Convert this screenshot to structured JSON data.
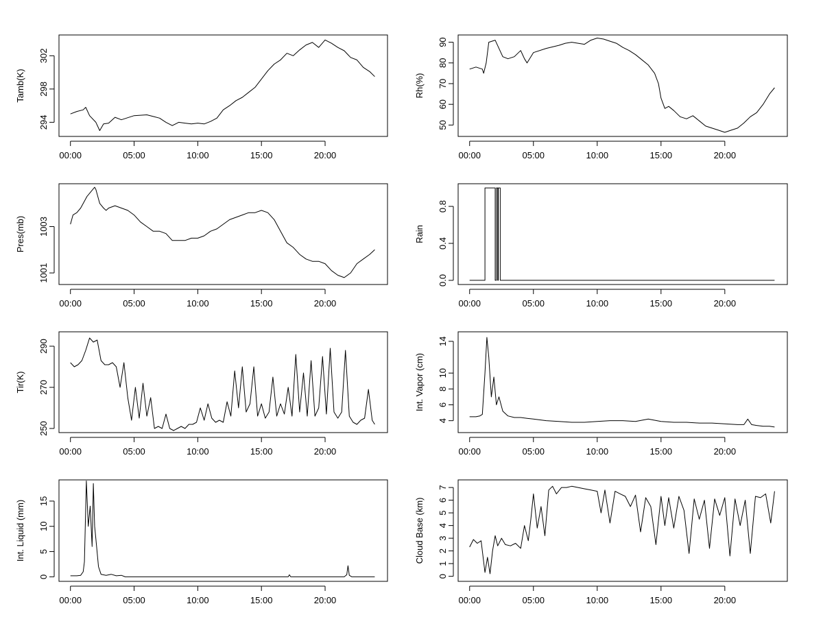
{
  "chart_data": [
    {
      "type": "line",
      "ylabel": "Tamb(K)",
      "x_ticks": [
        "00:00",
        "05:00",
        "10:00",
        "15:00",
        "20:00"
      ],
      "y_ticks": [
        294,
        298,
        302
      ],
      "ylim": [
        292.3,
        304.5
      ],
      "xlim_hours": [
        -0.9,
        24.9
      ],
      "grid": false,
      "x": [
        0,
        0.5,
        1.0,
        1.2,
        1.5,
        2.0,
        2.3,
        2.6,
        3.0,
        3.5,
        4.0,
        5.0,
        6.0,
        6.5,
        7.0,
        7.5,
        8.0,
        8.5,
        9.0,
        9.5,
        10.0,
        10.5,
        11.0,
        11.5,
        12.0,
        12.5,
        13.0,
        13.5,
        14.0,
        14.5,
        15.0,
        15.5,
        16.0,
        16.5,
        17.0,
        17.5,
        18.0,
        18.5,
        19.0,
        19.5,
        20.0,
        20.5,
        21.0,
        21.5,
        22.0,
        22.5,
        23.0,
        23.5,
        23.9
      ],
      "y": [
        295.0,
        295.3,
        295.5,
        295.8,
        294.8,
        294.0,
        293.0,
        293.8,
        293.9,
        294.6,
        294.3,
        294.8,
        294.9,
        294.7,
        294.5,
        294.0,
        293.6,
        294.0,
        293.9,
        293.8,
        293.9,
        293.8,
        294.1,
        294.5,
        295.5,
        296.0,
        296.6,
        297.0,
        297.6,
        298.2,
        299.2,
        300.2,
        301.0,
        301.5,
        302.3,
        302.0,
        302.7,
        303.3,
        303.6,
        303.0,
        303.9,
        303.5,
        303.0,
        302.6,
        301.8,
        301.5,
        300.6,
        300.1,
        299.5
      ]
    },
    {
      "type": "line",
      "ylabel": "Rh(%)",
      "x_ticks": [
        "00:00",
        "05:00",
        "10:00",
        "15:00",
        "20:00"
      ],
      "y_ticks": [
        50,
        60,
        70,
        80,
        90
      ],
      "ylim": [
        44.5,
        93.5
      ],
      "xlim_hours": [
        -0.9,
        24.9
      ],
      "grid": false,
      "x": [
        0,
        0.5,
        1.0,
        1.1,
        1.3,
        1.5,
        2.0,
        2.3,
        2.6,
        3.0,
        3.5,
        4.0,
        4.3,
        4.5,
        5.0,
        6.0,
        7.0,
        7.5,
        8.0,
        8.5,
        9.0,
        9.5,
        10.0,
        10.5,
        11.0,
        11.5,
        12.0,
        12.5,
        13.0,
        13.5,
        14.0,
        14.5,
        14.8,
        15.0,
        15.3,
        15.6,
        16.0,
        16.5,
        17.0,
        17.5,
        18.0,
        18.5,
        19.0,
        19.5,
        20.0,
        20.5,
        21.0,
        21.5,
        22.0,
        22.5,
        23.0,
        23.5,
        23.9
      ],
      "y": [
        77,
        78,
        77,
        75,
        80,
        90,
        91,
        87,
        83,
        82,
        83,
        86,
        82,
        80,
        85,
        87,
        88.5,
        89.5,
        90,
        89.5,
        89,
        91,
        92,
        91.5,
        90.5,
        89.5,
        87.5,
        86,
        84,
        81.5,
        79,
        75,
        70,
        63,
        58,
        59,
        57,
        54,
        53,
        54.5,
        52,
        49.5,
        48.5,
        47.5,
        46.5,
        47.5,
        48.5,
        51,
        54,
        56,
        60,
        65,
        68
      ]
    },
    {
      "type": "line",
      "ylabel": "Pres(mb)",
      "x_ticks": [
        "00:00",
        "05:00",
        "10:00",
        "15:00",
        "20:00"
      ],
      "y_ticks": [
        1001,
        1003
      ],
      "ylim": [
        1000.5,
        1004.85
      ],
      "xlim_hours": [
        -0.9,
        24.9
      ],
      "grid": false,
      "x": [
        0,
        0.2,
        0.5,
        0.8,
        1.0,
        1.3,
        1.6,
        1.9,
        2.0,
        2.3,
        2.6,
        2.8,
        3.0,
        3.5,
        4.0,
        4.5,
        5.0,
        5.5,
        6.0,
        6.5,
        7.0,
        7.5,
        8.0,
        8.5,
        9.0,
        9.5,
        10.0,
        10.5,
        11.0,
        11.5,
        12.0,
        12.5,
        13.0,
        13.5,
        14.0,
        14.5,
        15.0,
        15.5,
        16.0,
        16.5,
        17.0,
        17.5,
        18.0,
        18.5,
        19.0,
        19.5,
        20.0,
        20.5,
        21.0,
        21.5,
        22.0,
        22.5,
        23.0,
        23.5,
        23.9
      ],
      "y": [
        1003.1,
        1003.5,
        1003.6,
        1003.8,
        1004.0,
        1004.3,
        1004.5,
        1004.7,
        1004.6,
        1004.0,
        1003.8,
        1003.7,
        1003.8,
        1003.9,
        1003.8,
        1003.7,
        1003.5,
        1003.2,
        1003.0,
        1002.8,
        1002.8,
        1002.7,
        1002.4,
        1002.4,
        1002.4,
        1002.5,
        1002.5,
        1002.6,
        1002.8,
        1002.9,
        1003.1,
        1003.3,
        1003.4,
        1003.5,
        1003.6,
        1003.6,
        1003.7,
        1003.6,
        1003.3,
        1002.8,
        1002.3,
        1002.1,
        1001.8,
        1001.6,
        1001.5,
        1001.5,
        1001.4,
        1001.1,
        1000.9,
        1000.8,
        1001.0,
        1001.4,
        1001.6,
        1001.8,
        1002.0
      ]
    },
    {
      "type": "line",
      "ylabel": "Rain",
      "x_ticks": [
        "00:00",
        "05:00",
        "10:00",
        "15:00",
        "20:00"
      ],
      "y_ticks": [
        "0.0",
        "0.4",
        "0.8"
      ],
      "ylim": [
        -0.045,
        1.045
      ],
      "xlim_hours": [
        -0.9,
        24.9
      ],
      "grid": false,
      "x": [
        0,
        1.2,
        1.2,
        2.0,
        2.0,
        2.1,
        2.1,
        2.2,
        2.2,
        2.25,
        2.25,
        2.4,
        2.4,
        23.9
      ],
      "y": [
        0,
        0,
        1,
        1,
        0,
        0,
        1,
        1,
        0,
        0,
        1,
        1,
        0,
        0
      ]
    },
    {
      "type": "line",
      "ylabel": "Tir(K)",
      "x_ticks": [
        "00:00",
        "05:00",
        "10:00",
        "15:00",
        "20:00"
      ],
      "y_ticks": [
        250,
        270,
        290
      ],
      "ylim": [
        248,
        297
      ],
      "xlim_hours": [
        -0.9,
        24.9
      ],
      "grid": false,
      "x": [
        0,
        0.3,
        0.6,
        0.9,
        1.2,
        1.5,
        1.8,
        2.1,
        2.4,
        2.7,
        3.0,
        3.3,
        3.6,
        3.9,
        4.2,
        4.5,
        4.8,
        5.1,
        5.4,
        5.7,
        6.0,
        6.3,
        6.6,
        6.9,
        7.2,
        7.5,
        7.8,
        8.1,
        8.4,
        8.7,
        9.0,
        9.3,
        9.6,
        9.9,
        10.2,
        10.5,
        10.8,
        11.1,
        11.4,
        11.7,
        12.0,
        12.3,
        12.6,
        12.9,
        13.2,
        13.5,
        13.8,
        14.1,
        14.4,
        14.7,
        15.0,
        15.3,
        15.6,
        15.9,
        16.2,
        16.5,
        16.8,
        17.1,
        17.4,
        17.7,
        18.0,
        18.3,
        18.6,
        18.9,
        19.2,
        19.5,
        19.8,
        20.1,
        20.4,
        20.7,
        21.0,
        21.3,
        21.6,
        21.9,
        22.2,
        22.5,
        22.8,
        23.1,
        23.4,
        23.7,
        23.9
      ],
      "y": [
        282,
        280,
        281,
        283,
        288,
        294,
        292,
        293,
        283,
        281,
        281,
        282,
        280,
        270,
        282,
        265,
        254,
        270,
        255,
        272,
        256,
        265,
        250,
        251,
        250,
        257,
        250,
        249,
        250,
        251,
        250,
        252,
        252,
        253,
        260,
        254,
        262,
        255,
        253,
        254,
        253,
        263,
        256,
        278,
        260,
        280,
        258,
        262,
        280,
        256,
        262,
        255,
        258,
        275,
        256,
        262,
        257,
        270,
        256,
        286,
        258,
        277,
        256,
        283,
        256,
        260,
        285,
        257,
        289,
        258,
        255,
        258,
        288,
        256,
        253,
        252,
        254,
        255,
        269,
        254,
        252
      ]
    },
    {
      "type": "line",
      "ylabel": "Int. Vapor (cm)",
      "x_ticks": [
        "00:00",
        "05:00",
        "10:00",
        "15:00",
        "20:00"
      ],
      "y_ticks": [
        4,
        6,
        8,
        10,
        14
      ],
      "ylim": [
        2.5,
        15.2
      ],
      "xlim_hours": [
        -0.9,
        24.9
      ],
      "grid": false,
      "x": [
        0,
        0.5,
        0.8,
        1.0,
        1.2,
        1.35,
        1.5,
        1.7,
        1.9,
        2.1,
        2.3,
        2.6,
        3.0,
        3.5,
        4.0,
        4.5,
        5.0,
        6.0,
        7.0,
        8.0,
        9.0,
        10.0,
        11.0,
        12.0,
        13.0,
        14.0,
        15.0,
        16.0,
        17.0,
        18.0,
        19.0,
        20.0,
        21.0,
        21.5,
        21.8,
        22.1,
        22.5,
        23.0,
        23.5,
        23.9
      ],
      "y": [
        4.5,
        4.5,
        4.6,
        4.8,
        10.0,
        14.5,
        12.0,
        7.0,
        9.5,
        6.0,
        7.0,
        5.2,
        4.6,
        4.4,
        4.4,
        4.3,
        4.2,
        4.0,
        3.9,
        3.8,
        3.8,
        3.9,
        4.0,
        4.0,
        3.9,
        4.2,
        3.9,
        3.8,
        3.8,
        3.7,
        3.7,
        3.6,
        3.5,
        3.5,
        4.2,
        3.5,
        3.4,
        3.3,
        3.3,
        3.2
      ]
    },
    {
      "type": "line",
      "ylabel": "Int. Liquid (mm)",
      "x_ticks": [
        "00:00",
        "05:00",
        "10:00",
        "15:00",
        "20:00"
      ],
      "y_ticks": [
        0,
        5,
        10,
        15
      ],
      "ylim": [
        -0.9,
        19.2
      ],
      "xlim_hours": [
        -0.9,
        24.9
      ],
      "grid": false,
      "x": [
        0,
        0.5,
        0.8,
        1.0,
        1.1,
        1.25,
        1.4,
        1.55,
        1.7,
        1.8,
        1.9,
        2.0,
        2.2,
        2.4,
        2.8,
        3.2,
        3.6,
        4.0,
        4.3,
        5.0,
        10.0,
        15.0,
        17.1,
        17.2,
        17.3,
        21.5,
        21.7,
        21.8,
        21.9,
        22.1,
        23.9
      ],
      "y": [
        0.2,
        0.2,
        0.3,
        1.0,
        3.0,
        19.0,
        10.0,
        14.0,
        6.0,
        18.5,
        10.0,
        7.5,
        2.0,
        0.5,
        0.3,
        0.5,
        0.2,
        0.3,
        0.0,
        0.0,
        0.0,
        0.0,
        0.0,
        0.4,
        0.0,
        0.0,
        0.4,
        2.2,
        0.3,
        0.0,
        0.0
      ]
    },
    {
      "type": "line",
      "ylabel": "Cloud Base (km)",
      "x_ticks": [
        "00:00",
        "05:00",
        "10:00",
        "15:00",
        "20:00"
      ],
      "y_ticks": [
        0,
        1,
        2,
        3,
        4,
        5,
        6,
        7
      ],
      "ylim": [
        -0.4,
        7.6
      ],
      "xlim_hours": [
        -0.9,
        24.9
      ],
      "grid": false,
      "x": [
        0,
        0.3,
        0.6,
        0.9,
        1.2,
        1.4,
        1.6,
        1.8,
        2.0,
        2.2,
        2.5,
        2.8,
        3.2,
        3.6,
        4.0,
        4.3,
        4.6,
        4.8,
        5.0,
        5.3,
        5.6,
        5.9,
        6.2,
        6.5,
        6.8,
        7.2,
        7.6,
        8.0,
        8.5,
        9.0,
        9.5,
        10.0,
        10.3,
        10.6,
        11.0,
        11.4,
        11.8,
        12.2,
        12.6,
        13.0,
        13.4,
        13.8,
        14.2,
        14.6,
        15.0,
        15.3,
        15.6,
        16.0,
        16.4,
        16.8,
        17.2,
        17.6,
        18.0,
        18.4,
        18.8,
        19.2,
        19.6,
        20.0,
        20.4,
        20.8,
        21.2,
        21.6,
        22.0,
        22.4,
        22.8,
        23.2,
        23.6,
        23.9
      ],
      "y": [
        2.3,
        2.9,
        2.6,
        2.8,
        0.3,
        1.5,
        0.2,
        2.0,
        3.2,
        2.4,
        3.0,
        2.5,
        2.4,
        2.6,
        2.2,
        4.0,
        2.8,
        4.5,
        6.5,
        3.8,
        5.5,
        3.2,
        6.8,
        7.1,
        6.5,
        7.0,
        7.0,
        7.1,
        7.0,
        6.9,
        6.8,
        6.7,
        5.0,
        6.8,
        4.2,
        6.7,
        6.5,
        6.3,
        5.5,
        6.4,
        3.5,
        6.2,
        5.5,
        2.5,
        6.3,
        4.0,
        6.2,
        3.8,
        6.3,
        5.2,
        1.8,
        6.1,
        4.5,
        6.0,
        2.2,
        6.1,
        4.8,
        6.2,
        1.6,
        6.1,
        4.0,
        6.0,
        1.8,
        6.3,
        6.2,
        6.5,
        4.2,
        6.7
      ]
    }
  ]
}
